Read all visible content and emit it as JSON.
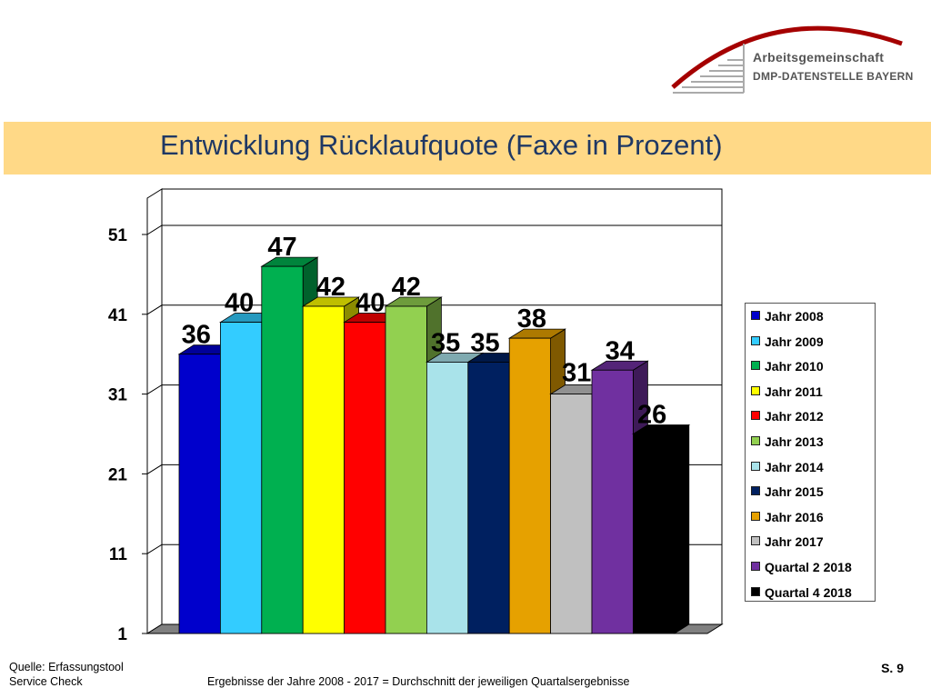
{
  "logo": {
    "line1": "Arbeitsgemeinschaft",
    "line2": "DMP-DATENSTELLE BAYERN"
  },
  "slide": {
    "title": "Entwicklung Rücklaufquote (Faxe in Prozent)",
    "page_number": "S. 9"
  },
  "footer": {
    "source_line1": "Quelle: Erfassungstool",
    "source_line2": "Service Check",
    "note": "Ergebnisse der Jahre 2008 - 2017  = Durchschnitt der jeweiligen Quartalsergebnisse"
  },
  "chart_data": {
    "type": "bar",
    "three_d": true,
    "title": "",
    "xlabel": "",
    "ylabel": "",
    "ylim": [
      1,
      51
    ],
    "yticks": [
      1,
      11,
      21,
      31,
      41,
      51
    ],
    "grid": true,
    "legend_position": "right",
    "series": [
      {
        "name": "Jahr 2008",
        "value": 36,
        "color": "#0000cc"
      },
      {
        "name": "Jahr 2009",
        "value": 40,
        "color": "#33ccff"
      },
      {
        "name": "Jahr 2010",
        "value": 47,
        "color": "#00b050"
      },
      {
        "name": "Jahr 2011",
        "value": 42,
        "color": "#ffff00"
      },
      {
        "name": "Jahr 2012",
        "value": 40,
        "color": "#ff0000"
      },
      {
        "name": "Jahr 2013",
        "value": 42,
        "color": "#92d050"
      },
      {
        "name": "Jahr 2014",
        "value": 35,
        "color": "#a9e3ea"
      },
      {
        "name": "Jahr 2015",
        "value": 35,
        "color": "#002060"
      },
      {
        "name": "Jahr 2016",
        "value": 38,
        "color": "#e6a100"
      },
      {
        "name": "Jahr 2017",
        "value": 31,
        "color": "#c0c0c0"
      },
      {
        "name": "Quartal 2 2018",
        "value": 34,
        "color": "#7030a0"
      },
      {
        "name": "Quartal 4 2018",
        "value": 26,
        "color": "#000000"
      }
    ]
  }
}
